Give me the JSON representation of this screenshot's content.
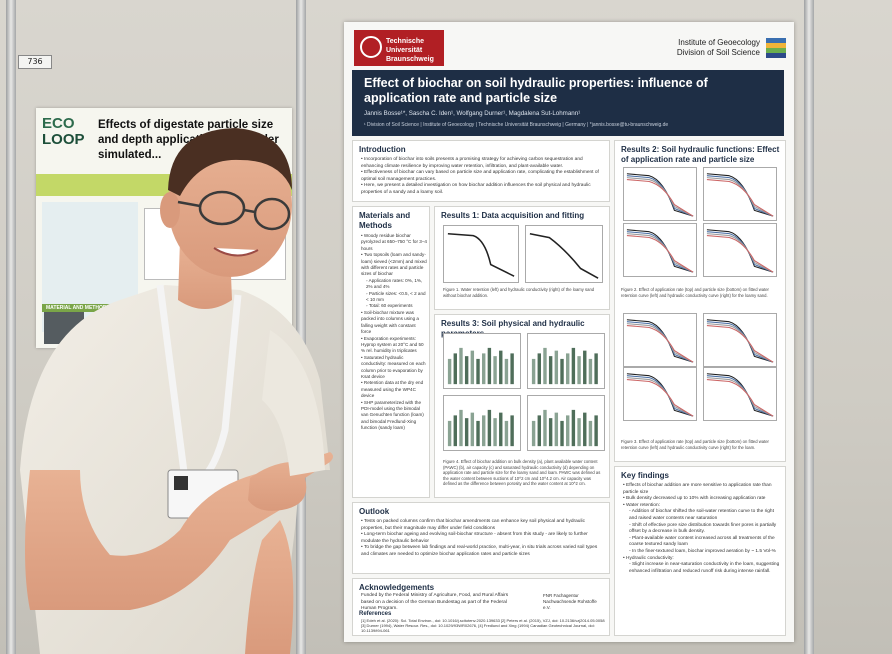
{
  "booth": {
    "tag": "736"
  },
  "left_poster": {
    "logo_top": "ECO",
    "logo_bottom": "LOOP",
    "title": "Effects of digestate particle size and depth application on... under simulated...",
    "section_label": "MATERIAL AND METHODS"
  },
  "poster": {
    "university": "Technische Universität Braunschweig",
    "institute": "Institute of Geoecology",
    "division": "Division of Soil Science",
    "title": "Effect of biochar on soil hydraulic properties: influence of application rate and particle size",
    "authors": "Jannis Bosse¹*, Sascha C. Iden¹, Wolfgang Durner¹, Magdalena Sut-Lohmann¹",
    "affiliation": "¹ Division of Soil Science | Institute of Geoecology | Technische Universität Braunschweig | Germany | *jannis.bosse@tu-braunschweig.de",
    "sections": {
      "introduction": "Introduction",
      "materials": "Materials and Methods",
      "results1": "Results 1: Data acquisition and fitting",
      "results2": "Results 2: Soil hydraulic functions: Effect of application rate and particle size",
      "results3": "Results 3: Soil physical and hydraulic parameters",
      "outlook": "Outlook",
      "key_findings": "Key findings",
      "acknowledgements": "Acknowledgements",
      "references": "References"
    },
    "intro_text": [
      "Incorporation of biochar into soils presents a promising strategy for achieving carbon sequestration and enhancing climate resilience by improving water retention, infiltration, and plant-available water.",
      "Effectiveness of biochar can vary based on particle size and application rate, complicating the establishment of optimal soil management practices.",
      "Here, we present a detailed investigation on how biochar addition influences the soil physical and hydraulic properties of a sandy and a loamy soil."
    ],
    "methods_text": [
      "Woody residue biochar pyrolyzed at 650–750 °C for 3–4 hours",
      "Two topsoils (loam and sandy-loam) sieved (<2mm) and mixed with different rates and particle sizes of biochar",
      "Application rates: 0%, 1%, 2% and 4%",
      "Particle sizes: <0.5, < 2 and < 10 mm",
      "Total: 60 experiments",
      "Soil-biochar mixture was packed into columns using a falling weight with constant force",
      "Evaporation experiments: Hyprop system at 20°C and 50 % rel. humidity in triplicates",
      "Saturated hydraulic conductivity: measured on each column prior to evaporation by Ksat device",
      "Retention data at the dry end measured using the WP4C device",
      "SHP parameterized with the PDI-model using the bimodal van Genuchten function (loam) and bimodal Fredlund-Xing function (sandy loam)"
    ],
    "fig1_caption": "Figure 1. Water retention (left) and hydraulic conductivity (right) of the loamy sand without biochar addition.",
    "fig2_caption": "Figure 2. Effect of application rate (top) and particle size (bottom) on fitted water retention curve (left) and hydraulic conductivity curve (right) for the loamy sand.",
    "fig3_caption": "Figure 3. Effect of application rate (top) and particle size (bottom) on fitted water retention curve (left) and hydraulic conductivity curve (right) for the loam.",
    "fig4_caption": "Figure 4. Effect of biochar addition on bulk density (a), plant available water content (PAWC) (b), air capacity (c) and saturated hydraulic conductivity (d) depending on application rate and particle size for the loamy sand and loam. PAWC was defined as the water content between suctions of 10^2 cm and 10^4.2 cm. Air capacity was defined as the difference between porosity and the water content at 10^2 cm.",
    "outlook_text": [
      "Tests on packed columns confirm that biochar amendments can enhance key soil physical and hydraulic properties, but their magnitude may differ under field conditions",
      "Long-term biochar ageing and evolving soil-biochar structure - absent from this study - are likely to further modulate the hydraulic behavior",
      "To bridge the gap between lab findings and real-world practice, multi-year, in situ trials across varied soil types and climates are needed to optimize biochar application rates and particle sizes"
    ],
    "key_findings_text": [
      "Effects of biochar addition are more sensitive to application rate than particle size",
      "Bulk density decreased up to 10% with increasing application rate",
      "Water retention:",
      "Addition of biochar shifted the soil-water retention curve to the right and raised water contents near saturation",
      "Shift of effective pore size distribution towards finer pores is partially offset by a decrease in bulk density.",
      "Plant-available water content increased across all treatments of the coarse textured sandy loam",
      "In the finer-textured loam, biochar improved aeration by ~ 1.5 Vol-%",
      "Hydraulic conductivity:",
      "Slight increase in near-saturation conductivity in the loam, suggesting enhanced infiltration and reduced runoff risk during intense rainfall."
    ],
    "ack_text": "Funded by the Federal Ministry of Agriculture, Food, and Rural Affairs based on a decision of the German Bundestag as part of the Federal Human Program.",
    "ref_text": "[1] Edeh et al. (2020): Sci. Total Environ., doi: 10.1016/j.scitotenv.2020.139633 [2] Peters et al. (2015), VZJ, doi: 10.2136/vzj2014.05.0058 [3] Durner (1994), Water Resour. Res., doi: 10.1029/93WR02676, [4] Fredlund and Xing (1994) Canadian Geotechnical Journal, doi: 10.1139/t94-061",
    "legend_labels": [
      "0%",
      "1%",
      "2%",
      "4%"
    ],
    "plot_labels": {
      "loamy_sand": "Loamy sand",
      "loam": "Loam",
      "hyprop": "Hyprop",
      "ksat": "Ksat"
    },
    "funder": "FNR Fachagentur Nachwachsende Rohstoffe e.V."
  },
  "colors": {
    "navy": "#1e2e45",
    "tu_red": "#b11f24",
    "poster_bg": "#f7f7f5",
    "box_bg": "#e8eaec"
  }
}
